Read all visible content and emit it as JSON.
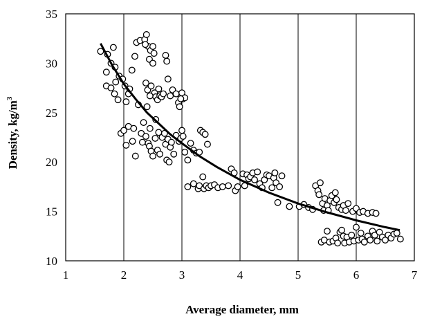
{
  "chart_data": {
    "type": "scatter",
    "title": "",
    "xlabel": "Average diameter, mm",
    "ylabel_main": "Density, kg/m",
    "ylabel_sup": "3",
    "xlim": [
      1,
      7
    ],
    "ylim": [
      10,
      35
    ],
    "xticks": [
      1,
      2,
      3,
      4,
      5,
      6,
      7
    ],
    "yticks": [
      10,
      15,
      20,
      25,
      30,
      35
    ],
    "grid": "vertical",
    "legend": "none",
    "colors": {
      "frame": "#000000",
      "grid": "#000000",
      "marker_fill": "#ffffff",
      "marker_edge": "#000000",
      "trend": "#000000"
    },
    "series": [
      {
        "type": "scatter",
        "points": [
          [
            1.6,
            31.2
          ],
          [
            1.72,
            30.9
          ],
          [
            1.82,
            31.6
          ],
          [
            1.78,
            30.0
          ],
          [
            1.7,
            29.1
          ],
          [
            1.85,
            29.6
          ],
          [
            1.7,
            27.7
          ],
          [
            1.78,
            27.5
          ],
          [
            1.84,
            26.9
          ],
          [
            1.86,
            28.1
          ],
          [
            1.9,
            26.3
          ],
          [
            1.92,
            28.7
          ],
          [
            1.98,
            28.4
          ],
          [
            2.02,
            27.7
          ],
          [
            2.04,
            26.1
          ],
          [
            2.08,
            26.9
          ],
          [
            2.1,
            27.4
          ],
          [
            1.95,
            22.9
          ],
          [
            2.0,
            23.2
          ],
          [
            2.04,
            21.7
          ],
          [
            2.08,
            23.6
          ],
          [
            2.15,
            22.1
          ],
          [
            2.17,
            23.4
          ],
          [
            2.2,
            20.6
          ],
          [
            2.14,
            29.3
          ],
          [
            2.19,
            30.7
          ],
          [
            2.22,
            32.1
          ],
          [
            2.28,
            32.3
          ],
          [
            2.25,
            25.8
          ],
          [
            2.3,
            22.9
          ],
          [
            2.32,
            22.0
          ],
          [
            2.34,
            24.0
          ],
          [
            2.36,
            32.4
          ],
          [
            2.39,
            32.9
          ],
          [
            2.42,
            31.7
          ],
          [
            2.37,
            31.9
          ],
          [
            2.44,
            30.4
          ],
          [
            2.46,
            31.3
          ],
          [
            2.5,
            31.7
          ],
          [
            2.52,
            31.0
          ],
          [
            2.5,
            30.0
          ],
          [
            2.38,
            28.0
          ],
          [
            2.41,
            27.3
          ],
          [
            2.47,
            27.7
          ],
          [
            2.53,
            27.0
          ],
          [
            2.55,
            26.6
          ],
          [
            2.45,
            26.7
          ],
          [
            2.4,
            25.6
          ],
          [
            2.58,
            26.3
          ],
          [
            2.62,
            26.7
          ],
          [
            2.65,
            26.6
          ],
          [
            2.6,
            27.4
          ],
          [
            2.68,
            26.9
          ],
          [
            2.72,
            30.8
          ],
          [
            2.74,
            30.2
          ],
          [
            2.76,
            28.4
          ],
          [
            2.8,
            26.7
          ],
          [
            2.84,
            27.3
          ],
          [
            2.9,
            26.9
          ],
          [
            2.94,
            26.0
          ],
          [
            2.96,
            25.6
          ],
          [
            3.0,
            27.0
          ],
          [
            3.02,
            26.4
          ],
          [
            3.05,
            26.5
          ],
          [
            2.98,
            26.4
          ],
          [
            2.38,
            22.6
          ],
          [
            2.42,
            21.9
          ],
          [
            2.44,
            21.6
          ],
          [
            2.47,
            21.1
          ],
          [
            2.5,
            20.6
          ],
          [
            2.54,
            22.4
          ],
          [
            2.58,
            21.2
          ],
          [
            2.62,
            20.8
          ],
          [
            2.66,
            22.5
          ],
          [
            2.7,
            22.9
          ],
          [
            2.72,
            21.8
          ],
          [
            2.76,
            22.3
          ],
          [
            2.8,
            21.5
          ],
          [
            2.82,
            22.0
          ],
          [
            2.86,
            20.8
          ],
          [
            2.9,
            22.7
          ],
          [
            2.95,
            22.1
          ],
          [
            2.98,
            22.4
          ],
          [
            3.0,
            23.2
          ],
          [
            2.74,
            20.2
          ],
          [
            2.78,
            20.0
          ],
          [
            2.55,
            24.3
          ],
          [
            2.45,
            23.4
          ],
          [
            2.6,
            23.0
          ],
          [
            3.02,
            22.6
          ],
          [
            3.05,
            21.0
          ],
          [
            3.1,
            20.2
          ],
          [
            3.15,
            21.9
          ],
          [
            3.2,
            21.2
          ],
          [
            3.25,
            20.9
          ],
          [
            3.3,
            21.0
          ],
          [
            3.32,
            23.2
          ],
          [
            3.36,
            23.0
          ],
          [
            3.4,
            22.8
          ],
          [
            3.44,
            21.8
          ],
          [
            3.1,
            17.5
          ],
          [
            3.2,
            17.8
          ],
          [
            3.28,
            17.3
          ],
          [
            3.3,
            17.6
          ],
          [
            3.36,
            18.5
          ],
          [
            3.38,
            17.3
          ],
          [
            3.42,
            17.6
          ],
          [
            3.46,
            17.4
          ],
          [
            3.5,
            17.6
          ],
          [
            3.56,
            17.7
          ],
          [
            3.62,
            17.4
          ],
          [
            3.7,
            17.5
          ],
          [
            3.8,
            17.6
          ],
          [
            3.85,
            19.3
          ],
          [
            3.9,
            18.9
          ],
          [
            3.92,
            17.1
          ],
          [
            3.96,
            17.5
          ],
          [
            4.05,
            18.8
          ],
          [
            4.08,
            17.6
          ],
          [
            4.12,
            18.7
          ],
          [
            4.15,
            18.3
          ],
          [
            4.18,
            18.5
          ],
          [
            4.22,
            18.9
          ],
          [
            4.25,
            18.2
          ],
          [
            4.3,
            19.0
          ],
          [
            4.34,
            17.8
          ],
          [
            4.38,
            17.4
          ],
          [
            4.42,
            18.2
          ],
          [
            4.46,
            18.7
          ],
          [
            4.5,
            18.6
          ],
          [
            4.55,
            17.4
          ],
          [
            4.58,
            18.4
          ],
          [
            4.62,
            17.9
          ],
          [
            4.68,
            17.5
          ],
          [
            4.72,
            18.6
          ],
          [
            4.65,
            15.9
          ],
          [
            4.85,
            15.5
          ],
          [
            4.6,
            18.9
          ],
          [
            5.02,
            15.5
          ],
          [
            5.1,
            15.7
          ],
          [
            5.18,
            15.4
          ],
          [
            5.25,
            15.2
          ],
          [
            5.3,
            17.6
          ],
          [
            5.34,
            17.1
          ],
          [
            5.36,
            16.7
          ],
          [
            5.38,
            17.9
          ],
          [
            5.42,
            15.8
          ],
          [
            5.44,
            15.1
          ],
          [
            5.46,
            16.3
          ],
          [
            5.5,
            15.6
          ],
          [
            5.52,
            15.1
          ],
          [
            5.55,
            16.1
          ],
          [
            5.58,
            16.6
          ],
          [
            5.62,
            15.9
          ],
          [
            5.64,
            16.9
          ],
          [
            5.66,
            16.2
          ],
          [
            5.7,
            15.4
          ],
          [
            5.75,
            15.2
          ],
          [
            5.78,
            15.6
          ],
          [
            5.82,
            15.1
          ],
          [
            5.86,
            15.8
          ],
          [
            5.94,
            15.0
          ],
          [
            6.0,
            15.3
          ],
          [
            6.06,
            14.9
          ],
          [
            6.12,
            15.0
          ],
          [
            6.2,
            14.8
          ],
          [
            6.28,
            14.9
          ],
          [
            6.34,
            14.8
          ],
          [
            5.4,
            11.9
          ],
          [
            5.45,
            12.1
          ],
          [
            5.5,
            13.0
          ],
          [
            5.54,
            11.9
          ],
          [
            5.6,
            12.0
          ],
          [
            5.65,
            12.3
          ],
          [
            5.68,
            11.8
          ],
          [
            5.72,
            12.9
          ],
          [
            5.75,
            13.1
          ],
          [
            5.78,
            12.5
          ],
          [
            5.8,
            11.8
          ],
          [
            5.84,
            12.4
          ],
          [
            5.88,
            11.9
          ],
          [
            5.92,
            12.6
          ],
          [
            5.96,
            12.0
          ],
          [
            6.0,
            13.4
          ],
          [
            6.04,
            12.1
          ],
          [
            6.08,
            12.8
          ],
          [
            6.1,
            12.2
          ],
          [
            6.14,
            11.9
          ],
          [
            6.2,
            12.5
          ],
          [
            6.24,
            12.1
          ],
          [
            6.28,
            13.0
          ],
          [
            6.32,
            12.6
          ],
          [
            6.36,
            12.0
          ],
          [
            6.4,
            12.9
          ],
          [
            6.45,
            12.4
          ],
          [
            6.5,
            12.1
          ],
          [
            6.55,
            12.6
          ],
          [
            6.6,
            12.3
          ],
          [
            6.65,
            12.7
          ],
          [
            6.7,
            12.8
          ],
          [
            6.76,
            12.2
          ]
        ]
      },
      {
        "type": "line",
        "points": [
          [
            1.6,
            32.0
          ],
          [
            1.8,
            29.8
          ],
          [
            2.0,
            27.9
          ],
          [
            2.2,
            26.4
          ],
          [
            2.4,
            25.0
          ],
          [
            2.6,
            23.9
          ],
          [
            2.8,
            22.8
          ],
          [
            3.0,
            21.9
          ],
          [
            3.3,
            20.6
          ],
          [
            3.6,
            19.5
          ],
          [
            4.0,
            18.2
          ],
          [
            4.5,
            16.9
          ],
          [
            5.0,
            15.8
          ],
          [
            5.5,
            14.9
          ],
          [
            6.0,
            14.1
          ],
          [
            6.5,
            13.4
          ],
          [
            6.75,
            13.1
          ]
        ]
      }
    ]
  }
}
